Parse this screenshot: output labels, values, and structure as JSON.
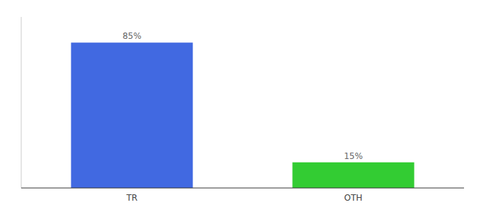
{
  "chart_data": {
    "type": "bar",
    "categories": [
      "TR",
      "OTH"
    ],
    "values": [
      85,
      15
    ],
    "value_labels": [
      "85%",
      "15%"
    ],
    "colors": [
      "#4169e1",
      "#33cc33"
    ],
    "ylim": [
      0,
      100
    ],
    "yticks": [],
    "data_labels": true,
    "tick_labels": "x"
  }
}
